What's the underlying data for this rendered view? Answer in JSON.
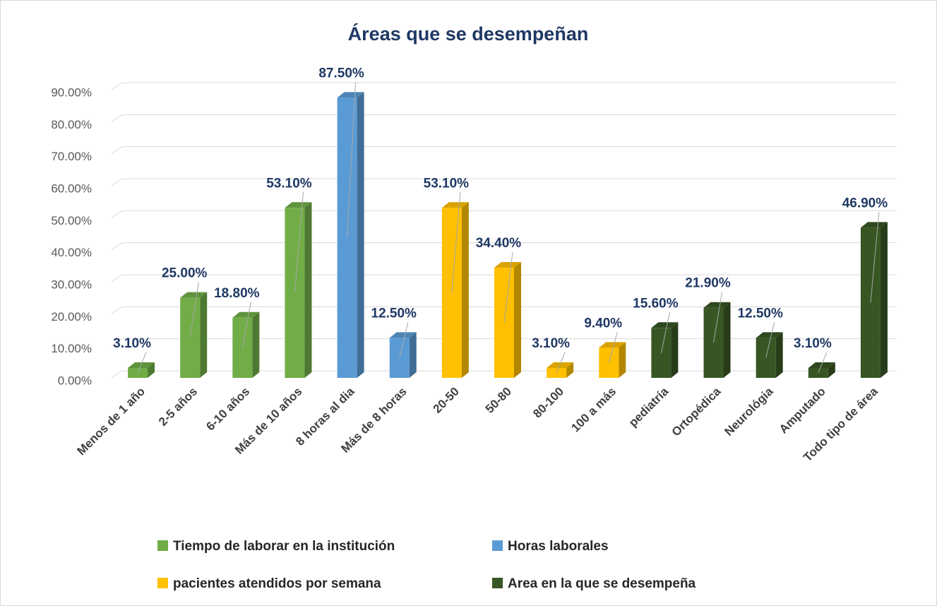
{
  "chart_data": {
    "type": "bar3d",
    "title": "Áreas que se desempeñan",
    "categories": [
      "Menos de 1 año",
      "2-5 años",
      "6-10 años",
      "Más de 10 años",
      "8 horas al dia",
      "Más de 8  horas",
      "20-50",
      "50-80",
      "80-100",
      "100 a más",
      "pediatría",
      "Ortopédica",
      "Neurológia",
      "Amputado",
      "Todo tipo de área"
    ],
    "series": [
      {
        "name": "Tiempo de laborar en la institución",
        "color": "#70ad47",
        "values": [
          3.1,
          25,
          18.8,
          53.1,
          null,
          null,
          null,
          null,
          null,
          null,
          null,
          null,
          null,
          null,
          null
        ],
        "value_labels": [
          "3.10%",
          "25.00%",
          "18.80%",
          "53.10%",
          null,
          null,
          null,
          null,
          null,
          null,
          null,
          null,
          null,
          null,
          null
        ]
      },
      {
        "name": "Horas laborales",
        "color": "#5b9bd5",
        "values": [
          null,
          null,
          null,
          null,
          87.5,
          12.5,
          null,
          null,
          null,
          null,
          null,
          null,
          null,
          null,
          null
        ],
        "value_labels": [
          null,
          null,
          null,
          null,
          "87.50%",
          "12.50%",
          null,
          null,
          null,
          null,
          null,
          null,
          null,
          null,
          null
        ]
      },
      {
        "name": "pacientes atendidos por semana",
        "color": "#ffc000",
        "values": [
          null,
          null,
          null,
          null,
          null,
          null,
          53.1,
          34.4,
          3.1,
          9.4,
          null,
          null,
          null,
          null,
          null
        ],
        "value_labels": [
          null,
          null,
          null,
          null,
          null,
          null,
          "53.10%",
          "34.40%",
          "3.10%",
          "9.40%",
          null,
          null,
          null,
          null,
          null
        ]
      },
      {
        "name": "Area en la que se desempeña",
        "color": "#375623",
        "values": [
          null,
          null,
          null,
          null,
          null,
          null,
          null,
          null,
          null,
          null,
          15.6,
          21.9,
          12.5,
          3.1,
          46.9
        ],
        "value_labels": [
          null,
          null,
          null,
          null,
          null,
          null,
          null,
          null,
          null,
          null,
          "15.60%",
          "21.90%",
          "12.50%",
          "3.10%",
          "46.90%"
        ]
      }
    ],
    "ylim": [
      0,
      90
    ],
    "yticks": [
      {
        "value": 0,
        "label": "0.00%"
      },
      {
        "value": 10,
        "label": "10.00%"
      },
      {
        "value": 20,
        "label": "20.00%"
      },
      {
        "value": 30,
        "label": "30.00%"
      },
      {
        "value": 40,
        "label": "40.00%"
      },
      {
        "value": 50,
        "label": "50.00%"
      },
      {
        "value": 60,
        "label": "60.00%"
      },
      {
        "value": 70,
        "label": "70.00%"
      },
      {
        "value": 80,
        "label": "80.00%"
      },
      {
        "value": 90,
        "label": "90.00%"
      }
    ],
    "grid": true
  }
}
